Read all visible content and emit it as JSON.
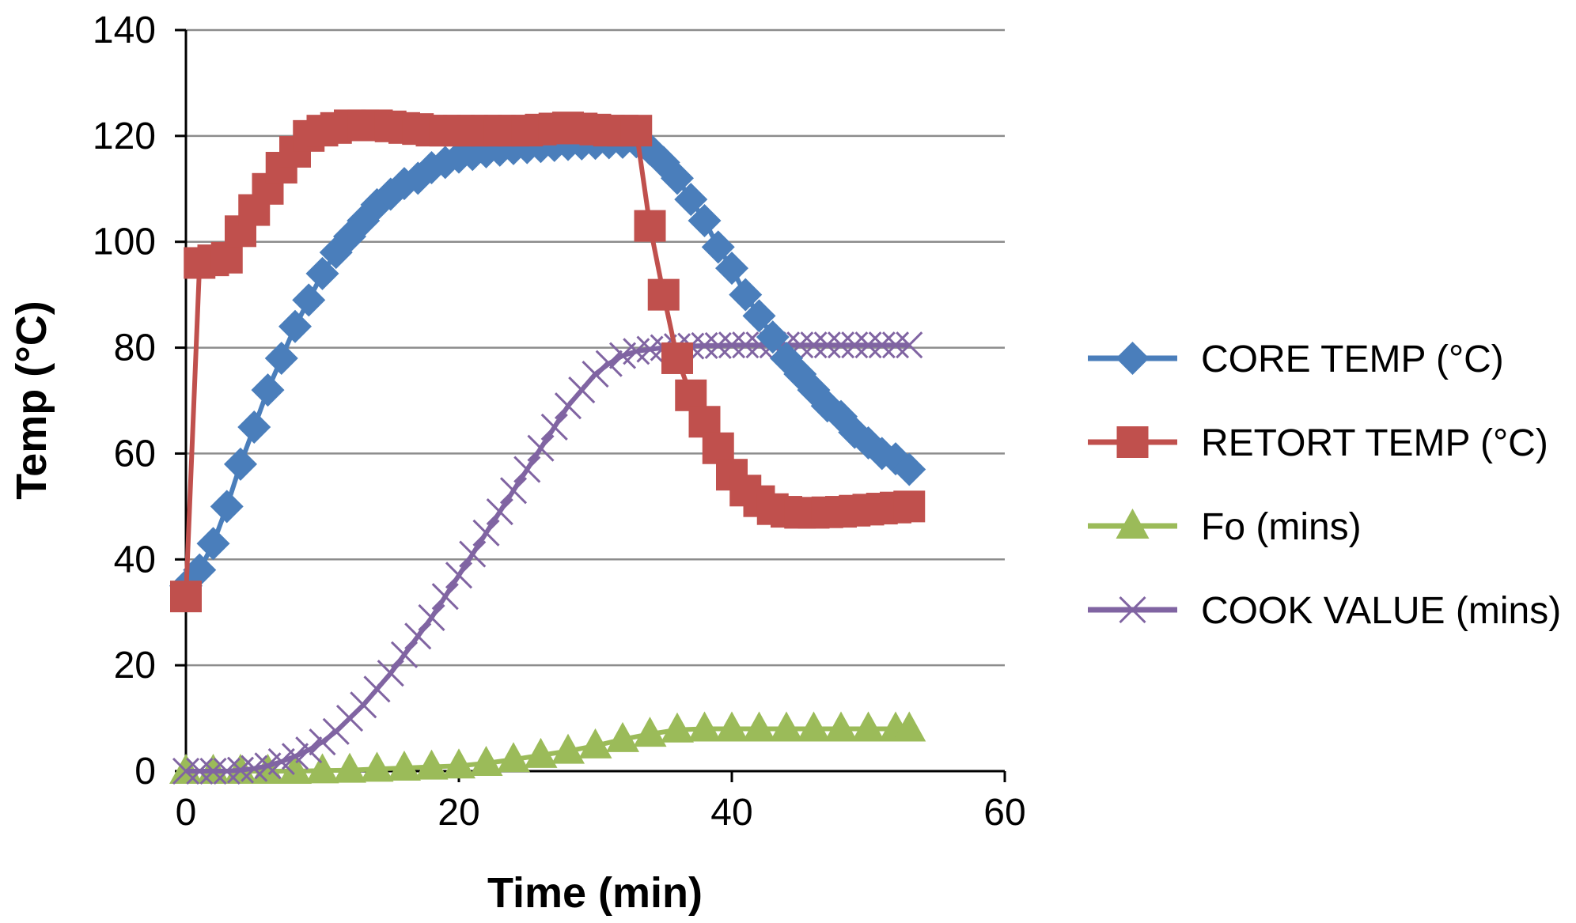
{
  "chart_data": {
    "type": "line",
    "xlabel": "Time (min)",
    "ylabel": "Temp (°C)",
    "xlim": [
      0,
      60
    ],
    "ylim": [
      0,
      140
    ],
    "xticks": [
      "0",
      "20",
      "40",
      "60"
    ],
    "yticks": [
      "0",
      "20",
      "40",
      "60",
      "80",
      "100",
      "120",
      "140"
    ],
    "grid": "horizontal",
    "legend_position": "right",
    "series": [
      {
        "name": "CORE TEMP (°C)",
        "color": "#4A7EBB",
        "marker": "diamond",
        "points": [
          [
            0,
            35
          ],
          [
            1,
            38
          ],
          [
            2,
            43
          ],
          [
            3,
            50
          ],
          [
            4,
            58
          ],
          [
            5,
            65
          ],
          [
            6,
            72
          ],
          [
            7,
            78
          ],
          [
            8,
            84
          ],
          [
            9,
            89
          ],
          [
            10,
            94
          ],
          [
            11,
            98
          ],
          [
            12,
            101
          ],
          [
            13,
            104
          ],
          [
            14,
            107
          ],
          [
            15,
            109
          ],
          [
            16,
            111
          ],
          [
            17,
            112
          ],
          [
            18,
            114
          ],
          [
            19,
            115
          ],
          [
            20,
            116
          ],
          [
            21,
            116.5
          ],
          [
            22,
            117
          ],
          [
            23,
            117.3
          ],
          [
            24,
            117.6
          ],
          [
            25,
            117.8
          ],
          [
            26,
            118
          ],
          [
            27,
            118.2
          ],
          [
            28,
            118.4
          ],
          [
            29,
            118.5
          ],
          [
            30,
            118.6
          ],
          [
            31,
            118.7
          ],
          [
            32,
            118.8
          ],
          [
            33,
            118.9
          ],
          [
            34,
            117.5
          ],
          [
            35,
            115
          ],
          [
            36,
            112
          ],
          [
            37,
            108
          ],
          [
            38,
            104
          ],
          [
            39,
            99
          ],
          [
            40,
            95
          ],
          [
            41,
            90
          ],
          [
            42,
            86
          ],
          [
            43,
            82
          ],
          [
            44,
            78
          ],
          [
            45,
            75
          ],
          [
            46,
            72
          ],
          [
            47,
            69
          ],
          [
            48,
            67
          ],
          [
            49,
            64
          ],
          [
            50,
            62
          ],
          [
            51,
            60
          ],
          [
            52,
            59
          ],
          [
            53,
            57
          ]
        ]
      },
      {
        "name": "RETORT TEMP (°C)",
        "color": "#C0504D",
        "marker": "square",
        "points": [
          [
            0,
            33
          ],
          [
            1,
            96
          ],
          [
            2,
            96.5
          ],
          [
            3,
            97
          ],
          [
            4,
            102
          ],
          [
            5,
            106
          ],
          [
            6,
            110
          ],
          [
            7,
            114
          ],
          [
            8,
            117
          ],
          [
            9,
            120
          ],
          [
            10,
            121
          ],
          [
            11,
            121.5
          ],
          [
            12,
            122
          ],
          [
            13,
            122
          ],
          [
            14,
            122
          ],
          [
            15,
            121.8
          ],
          [
            16,
            121.5
          ],
          [
            17,
            121.3
          ],
          [
            18,
            121
          ],
          [
            19,
            121
          ],
          [
            20,
            121
          ],
          [
            21,
            121
          ],
          [
            22,
            121
          ],
          [
            23,
            121
          ],
          [
            24,
            121
          ],
          [
            25,
            121
          ],
          [
            26,
            121.2
          ],
          [
            27,
            121.4
          ],
          [
            28,
            121.6
          ],
          [
            29,
            121.4
          ],
          [
            30,
            121.2
          ],
          [
            31,
            121
          ],
          [
            32,
            121
          ],
          [
            33,
            121
          ],
          [
            34,
            103
          ],
          [
            35,
            90
          ],
          [
            36,
            78
          ],
          [
            37,
            71
          ],
          [
            38,
            66
          ],
          [
            39,
            61
          ],
          [
            40,
            56
          ],
          [
            41,
            53
          ],
          [
            42,
            51
          ],
          [
            43,
            49.5
          ],
          [
            44,
            49
          ],
          [
            45,
            48.8
          ],
          [
            46,
            48.8
          ],
          [
            47,
            48.9
          ],
          [
            48,
            49
          ],
          [
            49,
            49.2
          ],
          [
            50,
            49.4
          ],
          [
            51,
            49.6
          ],
          [
            52,
            49.8
          ],
          [
            53,
            50
          ]
        ]
      },
      {
        "name": "Fo (mins)",
        "color": "#9BBB59",
        "marker": "triangle",
        "points": [
          [
            0,
            0
          ],
          [
            2,
            0
          ],
          [
            4,
            0
          ],
          [
            6,
            0
          ],
          [
            8,
            0
          ],
          [
            10,
            0.1
          ],
          [
            12,
            0.2
          ],
          [
            14,
            0.4
          ],
          [
            16,
            0.6
          ],
          [
            18,
            0.8
          ],
          [
            20,
            1
          ],
          [
            22,
            1.5
          ],
          [
            24,
            2.2
          ],
          [
            26,
            3
          ],
          [
            28,
            3.8
          ],
          [
            30,
            4.8
          ],
          [
            32,
            6
          ],
          [
            34,
            7
          ],
          [
            36,
            7.8
          ],
          [
            38,
            8
          ],
          [
            40,
            8
          ],
          [
            42,
            8
          ],
          [
            44,
            8
          ],
          [
            46,
            8
          ],
          [
            48,
            8
          ],
          [
            50,
            8
          ],
          [
            52,
            8
          ],
          [
            53,
            8
          ]
        ]
      },
      {
        "name": "COOK VALUE (mins)",
        "color": "#8064A2",
        "marker": "x",
        "points": [
          [
            0,
            0
          ],
          [
            1,
            0
          ],
          [
            2,
            0
          ],
          [
            3,
            0
          ],
          [
            4,
            0.2
          ],
          [
            5,
            0.5
          ],
          [
            6,
            1
          ],
          [
            7,
            1.8
          ],
          [
            8,
            2.8
          ],
          [
            9,
            4
          ],
          [
            10,
            5.5
          ],
          [
            11,
            7.5
          ],
          [
            12,
            10
          ],
          [
            13,
            12.5
          ],
          [
            14,
            15.5
          ],
          [
            15,
            18.5
          ],
          [
            16,
            22
          ],
          [
            17,
            25.5
          ],
          [
            18,
            29
          ],
          [
            19,
            33
          ],
          [
            20,
            37
          ],
          [
            21,
            41
          ],
          [
            22,
            45
          ],
          [
            23,
            49
          ],
          [
            24,
            53
          ],
          [
            25,
            57
          ],
          [
            26,
            61
          ],
          [
            27,
            65
          ],
          [
            28,
            69
          ],
          [
            29,
            72
          ],
          [
            30,
            75
          ],
          [
            31,
            77
          ],
          [
            32,
            78.5
          ],
          [
            33,
            79.3
          ],
          [
            34,
            79.7
          ],
          [
            35,
            80
          ],
          [
            36,
            80.2
          ],
          [
            37,
            80.3
          ],
          [
            38,
            80.4
          ],
          [
            39,
            80.4
          ],
          [
            40,
            80.5
          ],
          [
            41,
            80.5
          ],
          [
            42,
            80.5
          ],
          [
            43,
            80.5
          ],
          [
            44,
            80.5
          ],
          [
            45,
            80.5
          ],
          [
            46,
            80.5
          ],
          [
            47,
            80.5
          ],
          [
            48,
            80.5
          ],
          [
            49,
            80.5
          ],
          [
            50,
            80.5
          ],
          [
            51,
            80.5
          ],
          [
            52,
            80.5
          ],
          [
            53,
            80.5
          ]
        ]
      }
    ]
  }
}
